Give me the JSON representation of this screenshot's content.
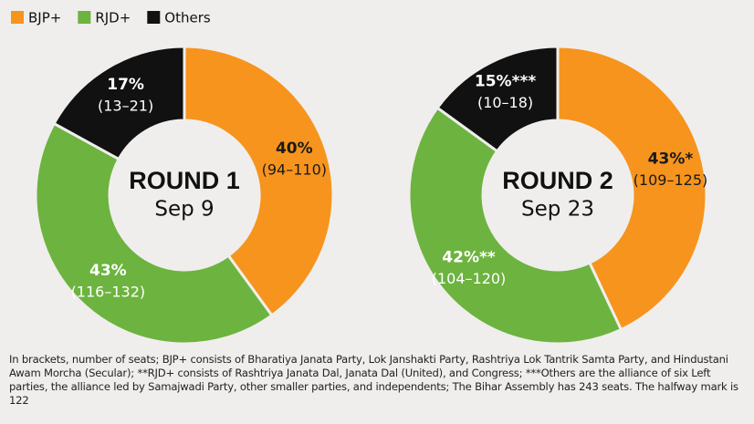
{
  "chart_data": [
    {
      "type": "pie",
      "title": "ROUND 1",
      "subtitle": "Sep 9",
      "categories": [
        "BJP+",
        "RJD+",
        "Others"
      ],
      "values": [
        40,
        43,
        17
      ],
      "value_labels": [
        "40%",
        "43%",
        "17%"
      ],
      "seat_ranges": [
        "(94–110)",
        "(116–132)",
        "(13–21)"
      ],
      "colors": [
        "#f7941d",
        "#6db33f",
        "#111111"
      ]
    },
    {
      "type": "pie",
      "title": "ROUND 2",
      "subtitle": "Sep 23",
      "categories": [
        "BJP+",
        "RJD+",
        "Others"
      ],
      "values": [
        43,
        42,
        15
      ],
      "value_labels": [
        "43%*",
        "42%**",
        "15%***"
      ],
      "seat_ranges": [
        "(109–125)",
        "(104–120)",
        "(10–18)"
      ],
      "colors": [
        "#f7941d",
        "#6db33f",
        "#111111"
      ]
    }
  ],
  "note": "In brackets, number of seats; BJP+ consists of Bharatiya Janata Party, Lok Janshakti Party, Rashtriya Lok Tantrik Samta Party, and Hindustani Awam Morcha (Secular); **RJD+ consists of Rashtriya Janata Dal, Janata Dal (United), and Congress; ***Others are the alliance of six Left parties, the alliance led by Samajwadi Party, other smaller parties, and independents; The Bihar Assembly has 243 seats. The halfway mark is 122"
}
